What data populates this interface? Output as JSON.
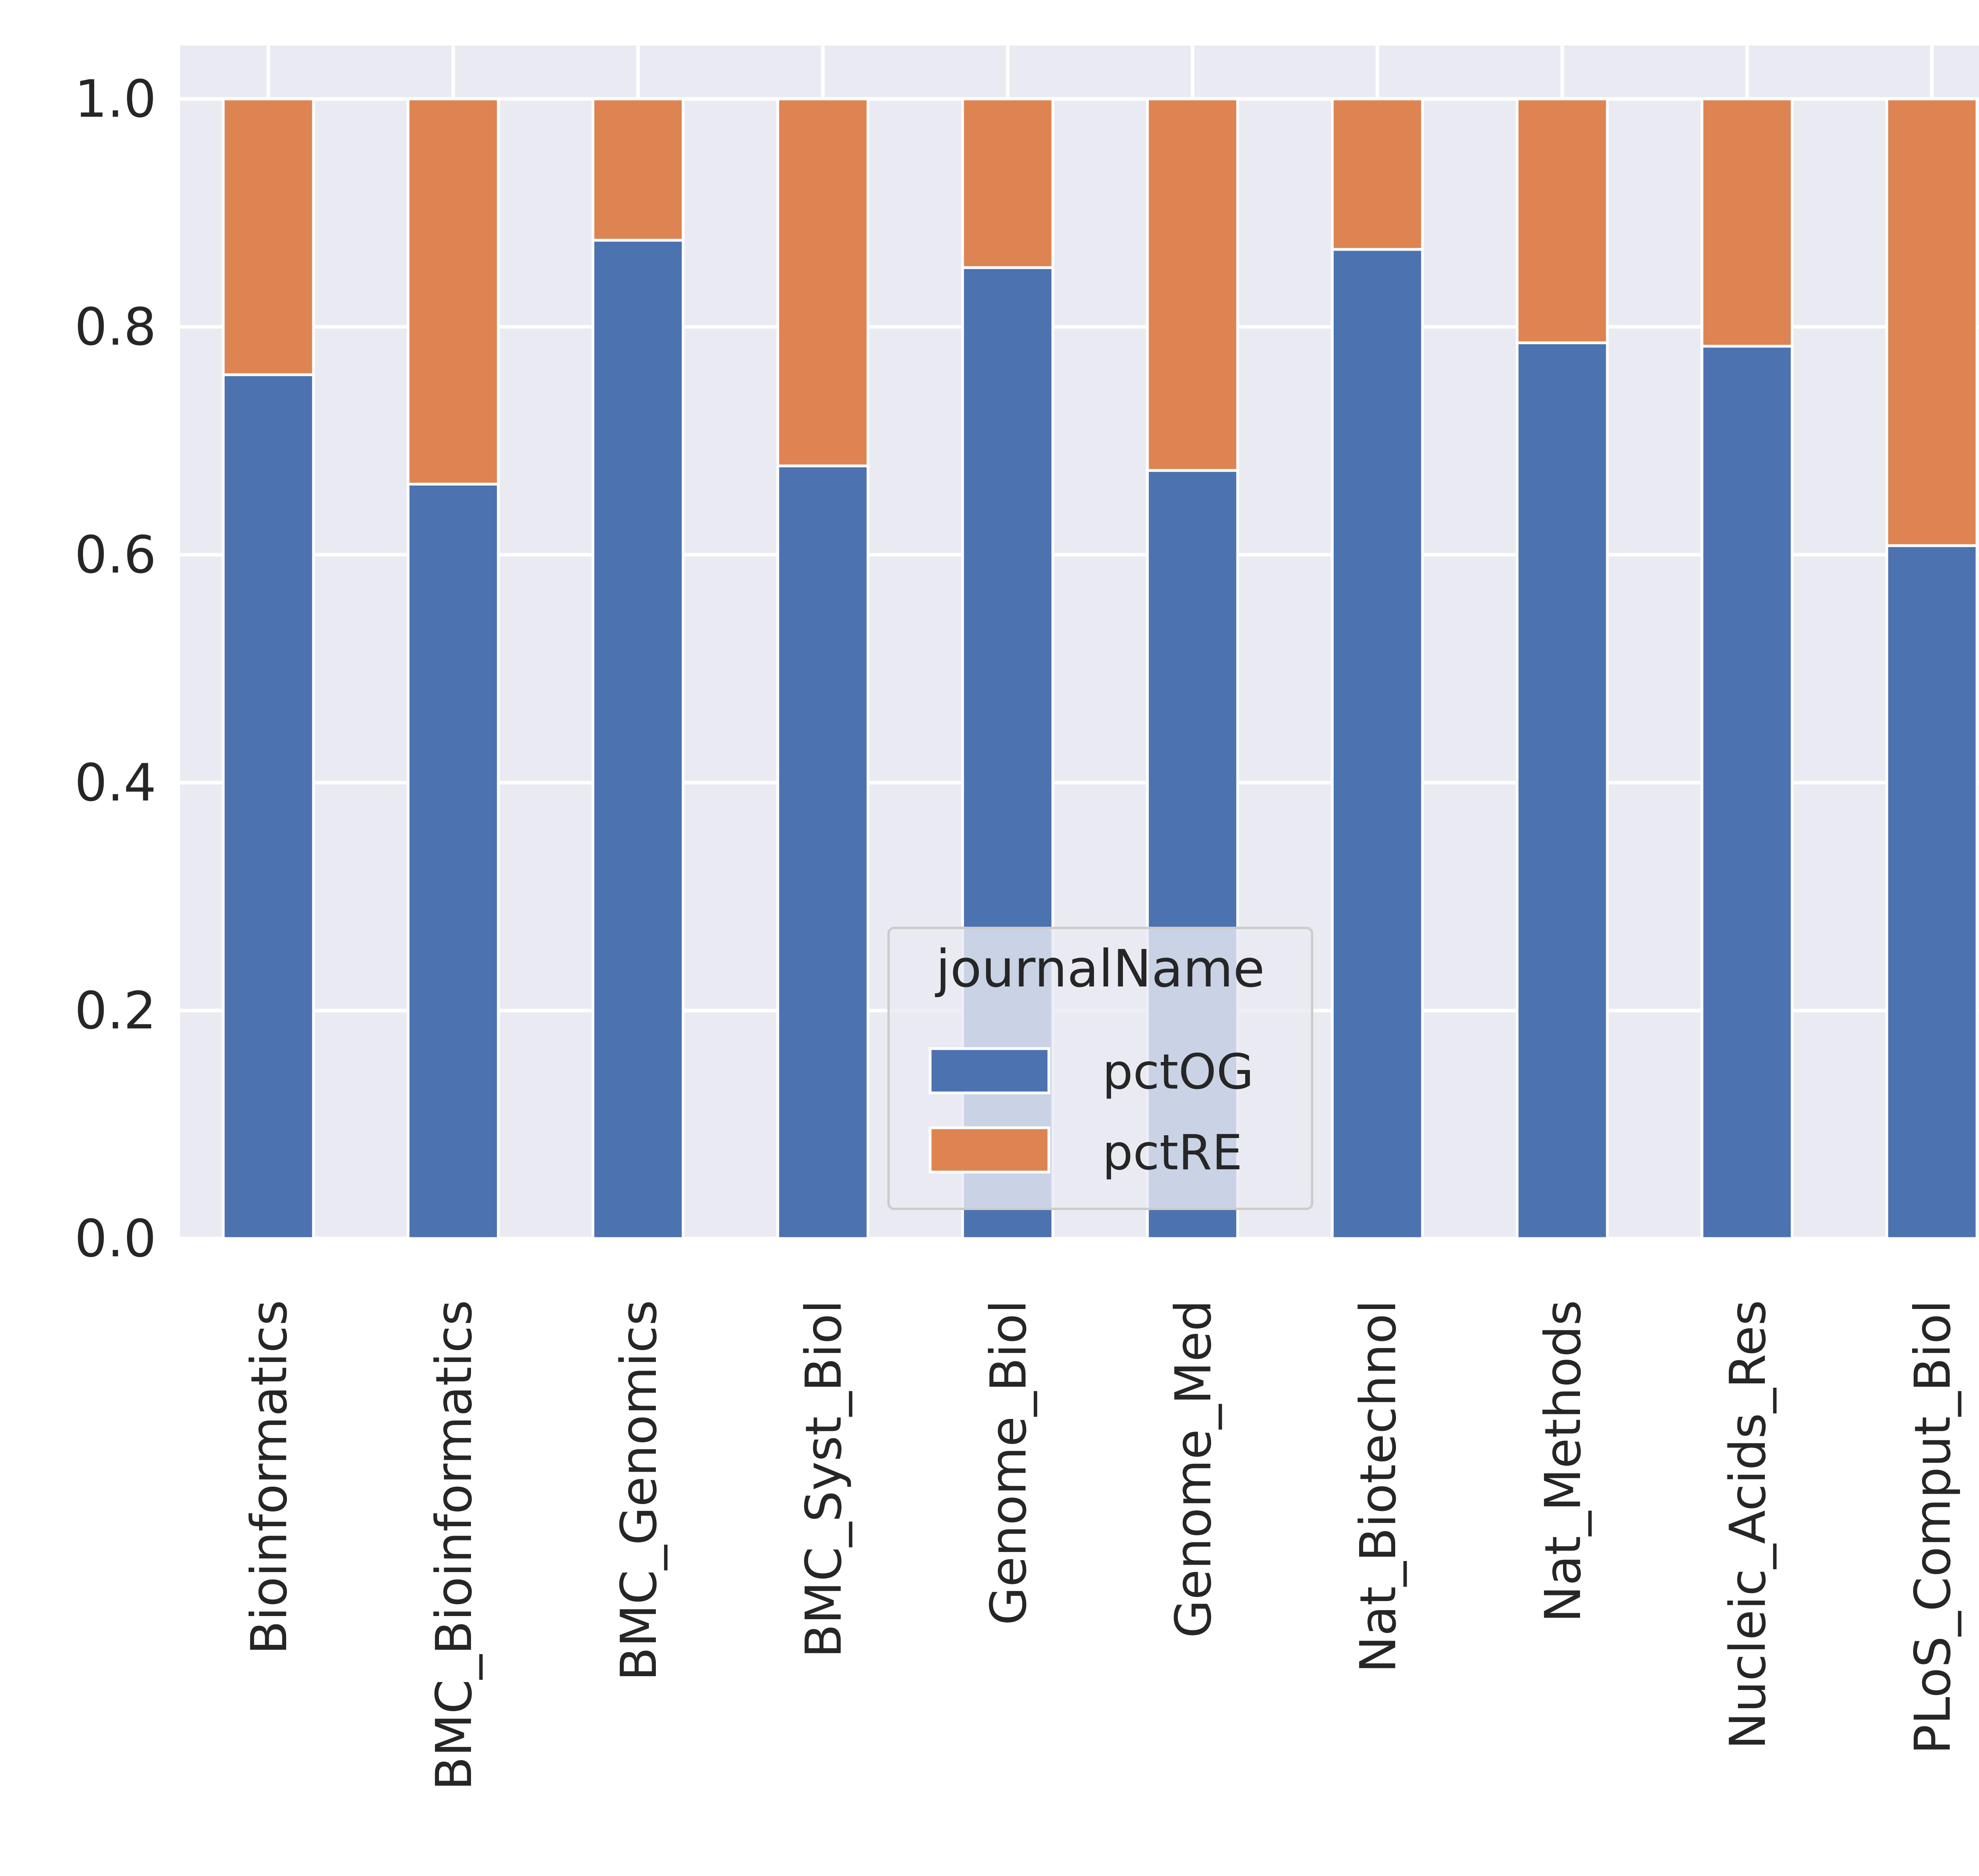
{
  "chart_data": {
    "type": "bar",
    "stacked": true,
    "categories": [
      "Bioinformatics",
      "BMC_Bioinformatics",
      "BMC_Genomics",
      "BMC_Syst_Biol",
      "Genome_Biol",
      "Genome_Med",
      "Nat_Biotechnol",
      "Nat_Methods",
      "Nucleic_Acids_Res",
      "PLoS_Comput_Biol"
    ],
    "series": [
      {
        "name": "pctOG",
        "color": "#4c72b0",
        "values": [
          0.758,
          0.662,
          0.876,
          0.678,
          0.852,
          0.674,
          0.868,
          0.786,
          0.783,
          0.608
        ]
      },
      {
        "name": "pctRE",
        "color": "#dd8452",
        "values": [
          0.242,
          0.338,
          0.124,
          0.322,
          0.148,
          0.326,
          0.132,
          0.214,
          0.217,
          0.392
        ]
      }
    ],
    "ylim": [
      0,
      1.05
    ],
    "yticks": [
      "0.0",
      "0.2",
      "0.4",
      "0.6",
      "0.8",
      "1.0"
    ],
    "ytick_values": [
      0,
      0.2,
      0.4,
      0.6,
      0.8,
      1.0
    ],
    "grid": true,
    "background": "#eaeaf2",
    "legend": {
      "title": "journalName",
      "placement": "lower-center"
    }
  }
}
